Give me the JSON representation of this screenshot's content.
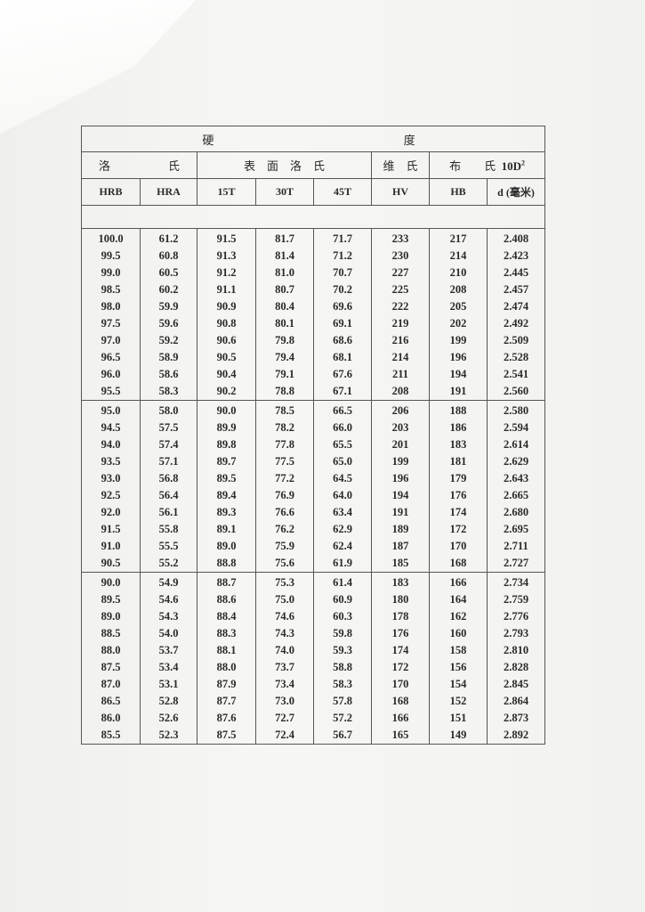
{
  "header": {
    "title_left": "硬",
    "title_right": "度",
    "group_rockwell": "洛　　　　　氏",
    "group_superficial": "表　面　洛　氏",
    "group_vickers": "维　氏",
    "group_brinell": "布　　氏",
    "group_brinell_suffix": "10D",
    "group_brinell_sup": "2",
    "columns": [
      "HRB",
      "HRA",
      "15T",
      "30T",
      "45T",
      "HV",
      "HB",
      "d (毫米)"
    ]
  },
  "rows": [
    [
      "100.0",
      "61.2",
      "91.5",
      "81.7",
      "71.7",
      "233",
      "217",
      "2.408"
    ],
    [
      "99.5",
      "60.8",
      "91.3",
      "81.4",
      "71.2",
      "230",
      "214",
      "2.423"
    ],
    [
      "99.0",
      "60.5",
      "91.2",
      "81.0",
      "70.7",
      "227",
      "210",
      "2.445"
    ],
    [
      "98.5",
      "60.2",
      "91.1",
      "80.7",
      "70.2",
      "225",
      "208",
      "2.457"
    ],
    [
      "98.0",
      "59.9",
      "90.9",
      "80.4",
      "69.6",
      "222",
      "205",
      "2.474"
    ],
    [
      "97.5",
      "59.6",
      "90.8",
      "80.1",
      "69.1",
      "219",
      "202",
      "2.492"
    ],
    [
      "97.0",
      "59.2",
      "90.6",
      "79.8",
      "68.6",
      "216",
      "199",
      "2.509"
    ],
    [
      "96.5",
      "58.9",
      "90.5",
      "79.4",
      "68.1",
      "214",
      "196",
      "2.528"
    ],
    [
      "96.0",
      "58.6",
      "90.4",
      "79.1",
      "67.6",
      "211",
      "194",
      "2.541"
    ],
    [
      "95.5",
      "58.3",
      "90.2",
      "78.8",
      "67.1",
      "208",
      "191",
      "2.560"
    ],
    [
      "95.0",
      "58.0",
      "90.0",
      "78.5",
      "66.5",
      "206",
      "188",
      "2.580"
    ],
    [
      "94.5",
      "57.5",
      "89.9",
      "78.2",
      "66.0",
      "203",
      "186",
      "2.594"
    ],
    [
      "94.0",
      "57.4",
      "89.8",
      "77.8",
      "65.5",
      "201",
      "183",
      "2.614"
    ],
    [
      "93.5",
      "57.1",
      "89.7",
      "77.5",
      "65.0",
      "199",
      "181",
      "2.629"
    ],
    [
      "93.0",
      "56.8",
      "89.5",
      "77.2",
      "64.5",
      "196",
      "179",
      "2.643"
    ],
    [
      "92.5",
      "56.4",
      "89.4",
      "76.9",
      "64.0",
      "194",
      "176",
      "2.665"
    ],
    [
      "92.0",
      "56.1",
      "89.3",
      "76.6",
      "63.4",
      "191",
      "174",
      "2.680"
    ],
    [
      "91.5",
      "55.8",
      "89.1",
      "76.2",
      "62.9",
      "189",
      "172",
      "2.695"
    ],
    [
      "91.0",
      "55.5",
      "89.0",
      "75.9",
      "62.4",
      "187",
      "170",
      "2.711"
    ],
    [
      "90.5",
      "55.2",
      "88.8",
      "75.6",
      "61.9",
      "185",
      "168",
      "2.727"
    ],
    [
      "90.0",
      "54.9",
      "88.7",
      "75.3",
      "61.4",
      "183",
      "166",
      "2.734"
    ],
    [
      "89.5",
      "54.6",
      "88.6",
      "75.0",
      "60.9",
      "180",
      "164",
      "2.759"
    ],
    [
      "89.0",
      "54.3",
      "88.4",
      "74.6",
      "60.3",
      "178",
      "162",
      "2.776"
    ],
    [
      "88.5",
      "54.0",
      "88.3",
      "74.3",
      "59.8",
      "176",
      "160",
      "2.793"
    ],
    [
      "88.0",
      "53.7",
      "88.1",
      "74.0",
      "59.3",
      "174",
      "158",
      "2.810"
    ],
    [
      "87.5",
      "53.4",
      "88.0",
      "73.7",
      "58.8",
      "172",
      "156",
      "2.828"
    ],
    [
      "87.0",
      "53.1",
      "87.9",
      "73.4",
      "58.3",
      "170",
      "154",
      "2.845"
    ],
    [
      "86.5",
      "52.8",
      "87.7",
      "73.0",
      "57.8",
      "168",
      "152",
      "2.864"
    ],
    [
      "86.0",
      "52.6",
      "87.6",
      "72.7",
      "57.2",
      "166",
      "151",
      "2.873"
    ],
    [
      "85.5",
      "52.3",
      "87.5",
      "72.4",
      "56.7",
      "165",
      "149",
      "2.892"
    ]
  ]
}
